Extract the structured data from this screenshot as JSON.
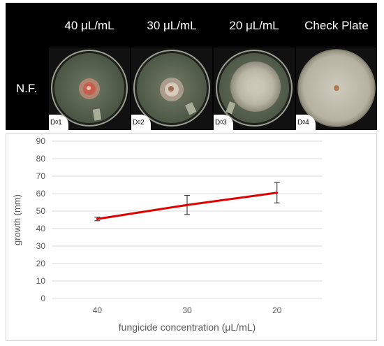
{
  "panel": {
    "headers": [
      "40 μL/mL",
      "30 μL/mL",
      "20 μL/mL",
      "Check Plate"
    ],
    "row_label": "N.F.",
    "plates": [
      {
        "tag_main": "D",
        "tag_sub": "0",
        "tag_num": "1"
      },
      {
        "tag_main": "D",
        "tag_sub": "0",
        "tag_num": "2"
      },
      {
        "tag_main": "D",
        "tag_sub": "0",
        "tag_num": "3"
      },
      {
        "tag_main": "D",
        "tag_sub": "0",
        "tag_num": "4"
      }
    ]
  },
  "chart_data": {
    "type": "line",
    "title": "",
    "xlabel": "fungicide concentration (μL/mL)",
    "ylabel": "growth (mm)",
    "categories": [
      "40",
      "30",
      "20"
    ],
    "series": [
      {
        "values": [
          45.5,
          53.5,
          60.5
        ],
        "errors": [
          1.0,
          5.5,
          5.8
        ],
        "color": "#e00000"
      }
    ],
    "ylim": [
      0,
      90
    ],
    "yticks": [
      0,
      10,
      20,
      30,
      40,
      50,
      60,
      70,
      80,
      90
    ],
    "grid": "horizontal",
    "gridColor": "#d9d9d9",
    "axisTextColor": "#595959"
  }
}
